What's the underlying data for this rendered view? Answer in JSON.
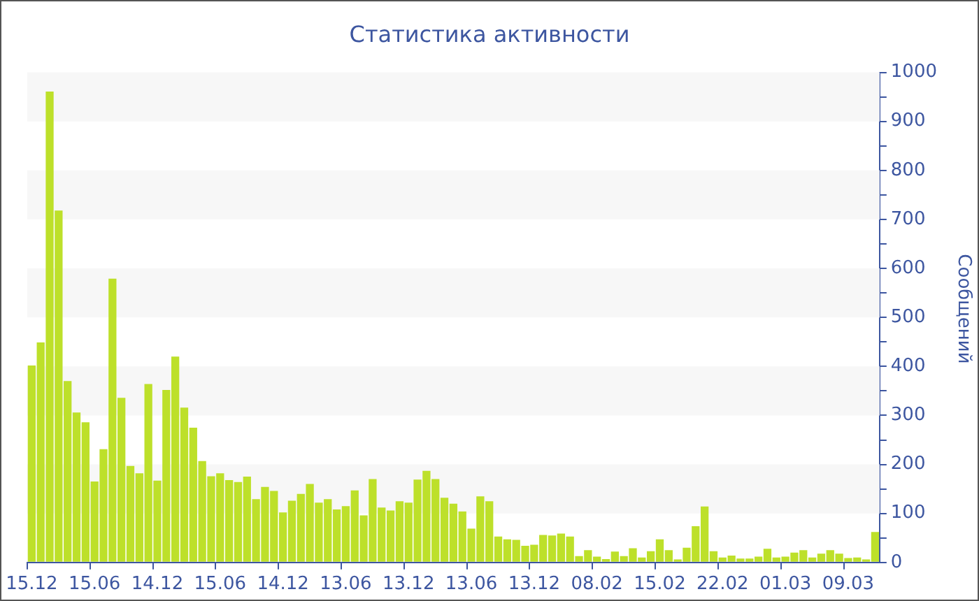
{
  "chart_data": {
    "type": "bar",
    "title": "Статистика активности",
    "ylabel": "Сообщений",
    "categories": [
      "15.12",
      null,
      null,
      null,
      null,
      null,
      null,
      "15.06",
      null,
      null,
      null,
      null,
      null,
      null,
      "14.12",
      null,
      null,
      null,
      null,
      null,
      null,
      "15.06",
      null,
      null,
      null,
      null,
      null,
      null,
      "14.12",
      null,
      null,
      null,
      null,
      null,
      null,
      "13.06",
      null,
      null,
      null,
      null,
      null,
      null,
      "13.12",
      null,
      null,
      null,
      null,
      null,
      null,
      "13.06",
      null,
      null,
      null,
      null,
      null,
      null,
      "13.12",
      null,
      null,
      null,
      null,
      null,
      null,
      "08.02",
      null,
      null,
      null,
      null,
      null,
      null,
      "15.02",
      null,
      null,
      null,
      null,
      null,
      null,
      "22.02",
      null,
      null,
      null,
      null,
      null,
      null,
      "01.03",
      null,
      null,
      null,
      null,
      null,
      null,
      "09.03",
      null,
      null,
      null
    ],
    "values": [
      402,
      449,
      961,
      718,
      370,
      306,
      286,
      165,
      231,
      579,
      336,
      197,
      182,
      364,
      167,
      352,
      420,
      316,
      275,
      207,
      176,
      182,
      168,
      164,
      175,
      129,
      154,
      146,
      102,
      126,
      140,
      160,
      122,
      129,
      108,
      115,
      147,
      96,
      170,
      112,
      106,
      125,
      122,
      169,
      187,
      170,
      132,
      120,
      104,
      69,
      135,
      125,
      53,
      47,
      46,
      34,
      36,
      56,
      55,
      59,
      53,
      13,
      25,
      12,
      7,
      22,
      13,
      29,
      10,
      23,
      47,
      25,
      6,
      30,
      74,
      114,
      23,
      10,
      14,
      8,
      8,
      12,
      28,
      10,
      12,
      20,
      25,
      10,
      18,
      25,
      18,
      9,
      10,
      6,
      62
    ],
    "color": "#bde02a",
    "ylim": [
      0,
      1000
    ],
    "yticks": [
      0,
      {
        "value": 50,
        "label": null
      },
      100,
      {
        "value": 150,
        "label": null
      },
      200,
      {
        "value": 250,
        "label": null
      },
      300,
      {
        "value": 350,
        "label": null
      },
      400,
      {
        "value": 450,
        "label": null
      },
      500,
      {
        "value": 550,
        "label": null
      },
      600,
      {
        "value": 650,
        "label": null
      },
      700,
      {
        "value": 750,
        "label": null
      },
      800,
      {
        "value": 850,
        "label": null
      },
      900,
      {
        "value": 950,
        "label": null
      },
      1000
    ],
    "bands": [
      {
        "axis": "y",
        "from": 100,
        "to": 200,
        "color": "#f7f7f7"
      },
      {
        "axis": "y",
        "from": 300,
        "to": 400,
        "color": "#f7f7f7"
      },
      {
        "axis": "y",
        "from": 500,
        "to": 600,
        "color": "#f7f7f7"
      },
      {
        "axis": "y",
        "from": 700,
        "to": 800,
        "color": "#f7f7f7"
      },
      {
        "axis": "y",
        "from": 900,
        "to": 1000,
        "color": "#f7f7f7"
      }
    ]
  }
}
